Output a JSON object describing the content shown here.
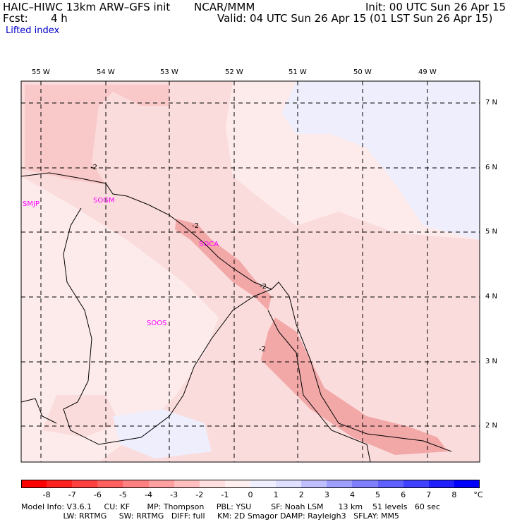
{
  "header": {
    "model_title": "HAIC–HIWC 13km ARW–GFS init",
    "org": "NCAR/MMM",
    "init": "Init: 00 UTC Sun 26 Apr 15",
    "fcst_label": "Fcst:",
    "fcst_value": "4 h",
    "valid": "Valid: 04 UTC Sun 26 Apr 15 (01 LST Sun 26 Apr 15)",
    "field": "Lifted index"
  },
  "map": {
    "lon_labels": [
      "55 W",
      "54 W",
      "53 W",
      "52 W",
      "51 W",
      "50 W",
      "49 W"
    ],
    "lat_labels": [
      "7 N",
      "6 N",
      "5 N",
      "4 N",
      "3 N",
      "2 N"
    ],
    "stations": [
      "SMJP",
      "SOGM",
      "SOCA",
      "SOOS"
    ],
    "contour_labels": [
      "-2",
      "-2",
      "-2",
      "-2"
    ],
    "colors": {
      "lt_minus1": "#fbdcdc",
      "minus1": "#fdebeb",
      "minus2": "#f9c8c8",
      "minus3": "#f3a8a8",
      "zero_to_1": "#eeeefc",
      "station": "#ff00ff"
    }
  },
  "colorbar": {
    "labels": [
      "-8",
      "-7",
      "-6",
      "-5",
      "-4",
      "-3",
      "-2",
      "-1",
      "0",
      "1",
      "2",
      "3",
      "4",
      "5",
      "6",
      "7",
      "8"
    ],
    "unit": "°C",
    "colors": [
      "#ff0000",
      "#ff2020",
      "#ff4040",
      "#ff6060",
      "#ff8080",
      "#ff9f9f",
      "#ffbfbf",
      "#ffdfdf",
      "#ffefef",
      "#efefff",
      "#dfdfff",
      "#bfbfff",
      "#9f9fff",
      "#8080ff",
      "#6060ff",
      "#4040ff",
      "#2020ff",
      "#0000ff"
    ]
  },
  "footer": {
    "line1": "Model Info: V3.6.1     CU: KF       MP: Thompson     PBL: YSU        SF: Noah LSM      13 km    51 levels   60 sec",
    "line2": "                 LW: RRTMG     SW: RRTMG   DIFF: full     KM: 2D Smagor DAMP: Rayleigh3   SFLAY: MM5"
  }
}
